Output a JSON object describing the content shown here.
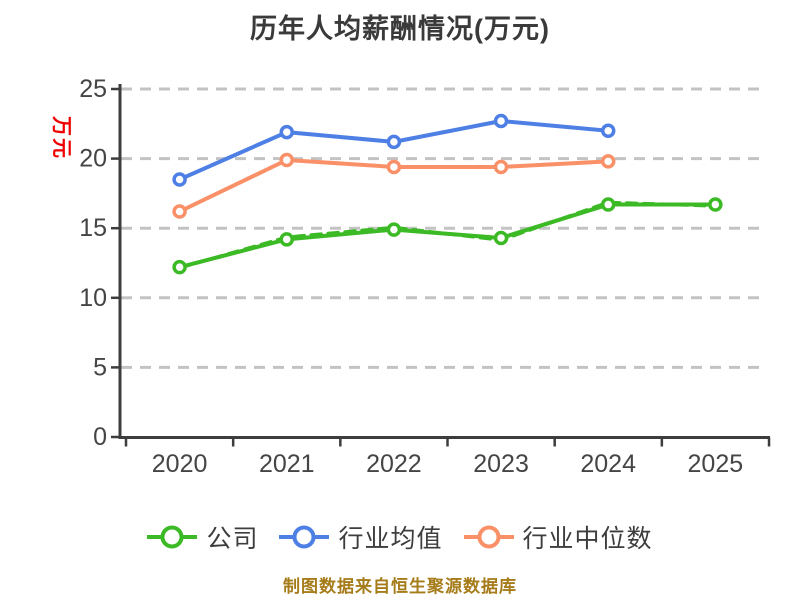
{
  "title": "历年人均薪酬情况(万元)",
  "footer_note": "制图数据来自恒生聚源数据库",
  "colors": {
    "title": "#3a3a3a",
    "axis": "#3d3d3d",
    "tick_label": "#454545",
    "grid": "#c3c3c3",
    "y_axis_name": "#ee0000",
    "footer": "#a67c1a",
    "marker_fill": "#ffffff"
  },
  "chart_data": {
    "type": "line",
    "title": "历年人均薪酬情况(万元)",
    "x": [
      "2020",
      "2021",
      "2022",
      "2023",
      "2024",
      "2025"
    ],
    "xlabel": "",
    "ylabel": "万元",
    "ylim": [
      0,
      25
    ],
    "yticks": [
      0,
      5,
      10,
      15,
      20,
      25
    ],
    "grid": "horizontal-dashed",
    "legend_position": "bottom",
    "series": [
      {
        "id": "company",
        "name": "公司",
        "color": "#3cba25",
        "line": "solid-with-dashed-twin",
        "values": [
          12.2,
          14.2,
          14.9,
          14.3,
          16.7,
          16.7
        ],
        "dashed_twin_values": [
          12.15,
          14.35,
          15.05,
          14.15,
          16.85,
          16.6
        ]
      },
      {
        "id": "industry-average",
        "name": "行业均值",
        "color": "#4e7fe4",
        "line": "solid",
        "values": [
          18.5,
          21.9,
          21.2,
          22.7,
          22.0,
          null
        ]
      },
      {
        "id": "industry-median",
        "name": "行业中位数",
        "color": "#fa9068",
        "line": "solid",
        "values": [
          16.2,
          19.9,
          19.4,
          19.4,
          19.8,
          null
        ]
      }
    ]
  }
}
